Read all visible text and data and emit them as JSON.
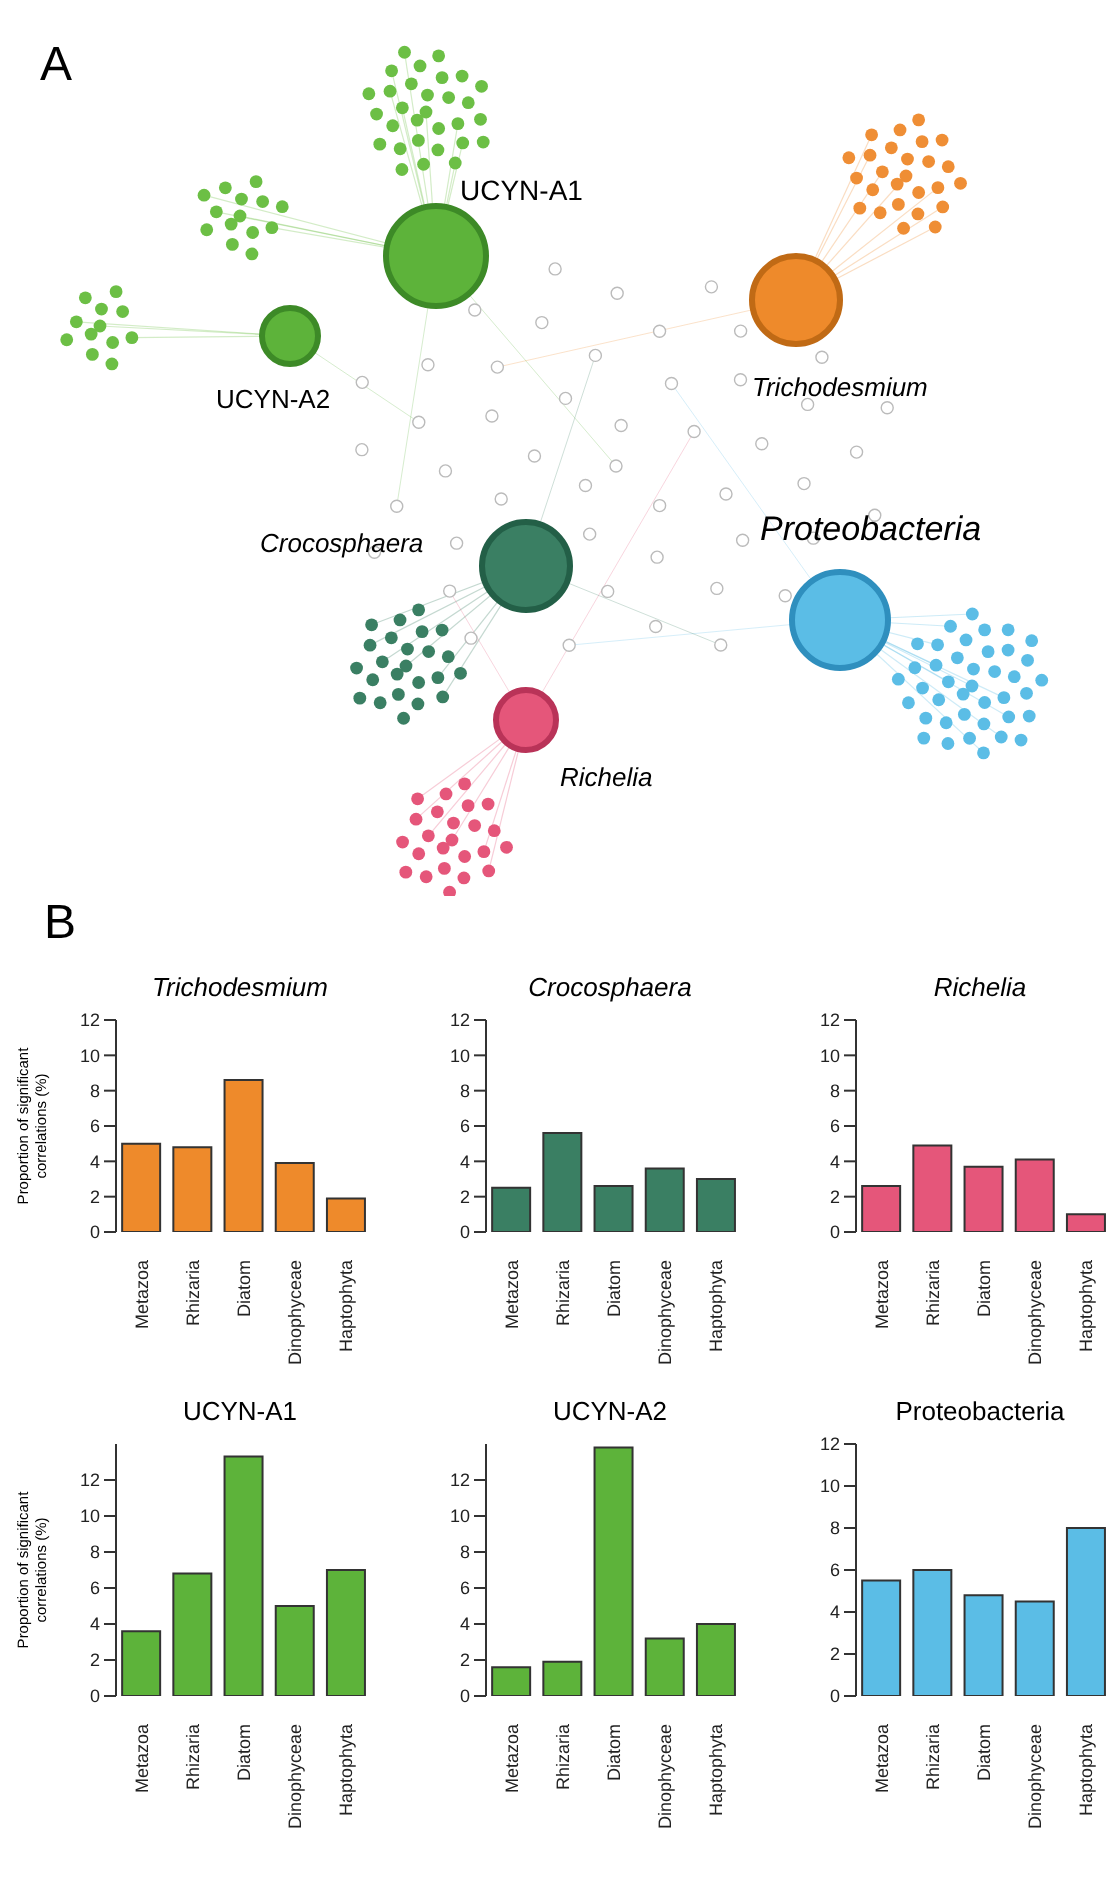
{
  "chart_data": [
    {
      "type": "other",
      "title": "A",
      "annotations": [
        "UCYN-A1",
        "UCYN-A2",
        "Trichodesmium",
        "Crocosphaera",
        "Proteobacteria",
        "Richelia"
      ]
    },
    {
      "type": "bar",
      "title": "Trichodesmium",
      "annotations": [
        "B"
      ],
      "ylabel": "Proportion of significant correlations (%)",
      "categories": [
        "Metazoa",
        "Rhizaria",
        "Diatom",
        "Dinophyceae",
        "Haptophyta"
      ],
      "values": [
        5.0,
        4.8,
        8.6,
        3.9,
        1.9
      ],
      "color": "#ee8a2b",
      "ylim": [
        0,
        12
      ],
      "yticks": [
        0,
        2,
        4,
        6,
        8,
        10,
        12
      ]
    },
    {
      "type": "bar",
      "title": "Crocosphaera",
      "categories": [
        "Metazoa",
        "Rhizaria",
        "Diatom",
        "Dinophyceae",
        "Haptophyta"
      ],
      "values": [
        2.5,
        5.6,
        2.6,
        3.6,
        3.0
      ],
      "color": "#3a7f63",
      "ylim": [
        0,
        12
      ],
      "yticks": [
        0,
        2,
        4,
        6,
        8,
        10,
        12
      ]
    },
    {
      "type": "bar",
      "title": "Richelia",
      "categories": [
        "Metazoa",
        "Rhizaria",
        "Diatom",
        "Dinophyceae",
        "Haptophyta"
      ],
      "values": [
        2.6,
        4.9,
        3.7,
        4.1,
        1.0
      ],
      "color": "#e5567a",
      "ylim": [
        0,
        12
      ],
      "yticks": [
        0,
        2,
        4,
        6,
        8,
        10,
        12
      ]
    },
    {
      "type": "bar",
      "title": "UCYN-A1",
      "ylabel": "Proportion of significant correlations (%)",
      "categories": [
        "Metazoa",
        "Rhizaria",
        "Diatom",
        "Dinophyceae",
        "Haptophyta"
      ],
      "values": [
        3.6,
        6.8,
        13.3,
        5.0,
        7.0
      ],
      "color": "#5db33a",
      "ylim": [
        0,
        14
      ],
      "yticks": [
        0,
        2,
        4,
        6,
        8,
        10,
        12
      ]
    },
    {
      "type": "bar",
      "title": "UCYN-A2",
      "categories": [
        "Metazoa",
        "Rhizaria",
        "Diatom",
        "Dinophyceae",
        "Haptophyta"
      ],
      "values": [
        1.6,
        1.9,
        13.8,
        3.2,
        4.0
      ],
      "color": "#5db33a",
      "ylim": [
        0,
        14
      ],
      "yticks": [
        0,
        2,
        4,
        6,
        8,
        10,
        12
      ]
    },
    {
      "type": "bar",
      "title": "Proteobacteria",
      "categories": [
        "Metazoa",
        "Rhizaria",
        "Diatom",
        "Dinophyceae",
        "Haptophyta"
      ],
      "values": [
        5.5,
        6.0,
        4.8,
        4.5,
        8.0
      ],
      "color": "#5bbde6",
      "ylim": [
        0,
        12
      ],
      "yticks": [
        0,
        2,
        4,
        6,
        8,
        10,
        12
      ]
    }
  ]
}
